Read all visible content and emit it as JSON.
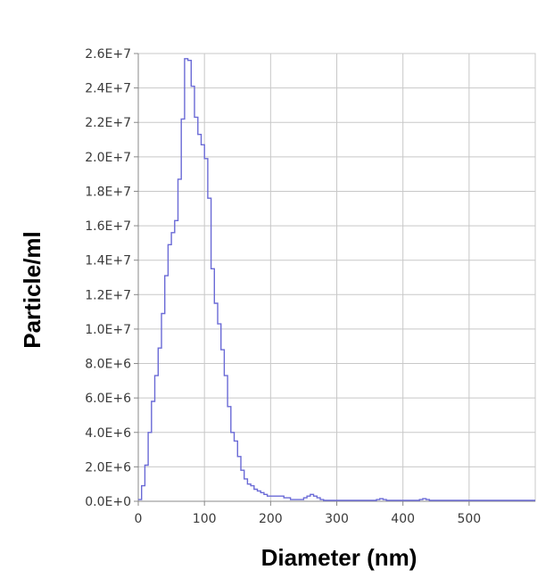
{
  "chart_data": {
    "type": "line",
    "title": "",
    "xlabel": "Diameter (nm)",
    "ylabel": "Particle/ml",
    "xlim": [
      0,
      600
    ],
    "ylim": [
      0,
      26000000
    ],
    "grid": true,
    "series_color": "#6a6ad6",
    "grid_color": "#c8c8c8",
    "x_ticks": [
      {
        "value": 0,
        "label": "0"
      },
      {
        "value": 100,
        "label": "100"
      },
      {
        "value": 200,
        "label": "200"
      },
      {
        "value": 300,
        "label": "300"
      },
      {
        "value": 400,
        "label": "400"
      },
      {
        "value": 500,
        "label": "500"
      }
    ],
    "y_ticks": [
      {
        "value": 0,
        "label": "0.0E+0"
      },
      {
        "value": 2000000,
        "label": "2.0E+6"
      },
      {
        "value": 4000000,
        "label": "4.0E+6"
      },
      {
        "value": 6000000,
        "label": "6.0E+6"
      },
      {
        "value": 8000000,
        "label": "8.0E+6"
      },
      {
        "value": 10000000,
        "label": "1.0E+7"
      },
      {
        "value": 12000000,
        "label": "1.2E+7"
      },
      {
        "value": 14000000,
        "label": "1.4E+7"
      },
      {
        "value": 16000000,
        "label": "1.6E+7"
      },
      {
        "value": 18000000,
        "label": "1.8E+7"
      },
      {
        "value": 20000000,
        "label": "2.0E+7"
      },
      {
        "value": 22000000,
        "label": "2.2E+7"
      },
      {
        "value": 24000000,
        "label": "2.4E+7"
      },
      {
        "value": 26000000,
        "label": "2.6E+7"
      }
    ],
    "series": [
      {
        "x": [
          0,
          5,
          10,
          15,
          20,
          25,
          30,
          35,
          40,
          45,
          50,
          55,
          60,
          65,
          70,
          75,
          80,
          85,
          90,
          95,
          100,
          105,
          110,
          115,
          120,
          125,
          130,
          135,
          140,
          145,
          150,
          155,
          160,
          165,
          170,
          175,
          180,
          185,
          190,
          195,
          200,
          210,
          220,
          230,
          240,
          250,
          255,
          260,
          265,
          270,
          275,
          280,
          300,
          320,
          340,
          360,
          365,
          370,
          375,
          380,
          400,
          420,
          425,
          430,
          435,
          440,
          460,
          480,
          500,
          550,
          600
        ],
        "y": [
          100000,
          900000,
          2100000,
          4000000,
          5800000,
          7300000,
          8900000,
          10900000,
          13100000,
          14900000,
          15600000,
          16300000,
          18700000,
          22200000,
          25700000,
          25600000,
          24100000,
          22300000,
          21300000,
          20700000,
          19900000,
          17600000,
          13500000,
          11500000,
          10300000,
          8800000,
          7300000,
          5500000,
          4000000,
          3500000,
          2600000,
          1800000,
          1300000,
          1000000,
          900000,
          700000,
          600000,
          500000,
          400000,
          300000,
          300000,
          300000,
          200000,
          100000,
          100000,
          200000,
          300000,
          400000,
          300000,
          200000,
          100000,
          50000,
          50000,
          50000,
          50000,
          100000,
          150000,
          100000,
          50000,
          50000,
          50000,
          50000,
          100000,
          150000,
          100000,
          50000,
          50000,
          50000,
          50000,
          50000,
          50000
        ]
      }
    ]
  }
}
